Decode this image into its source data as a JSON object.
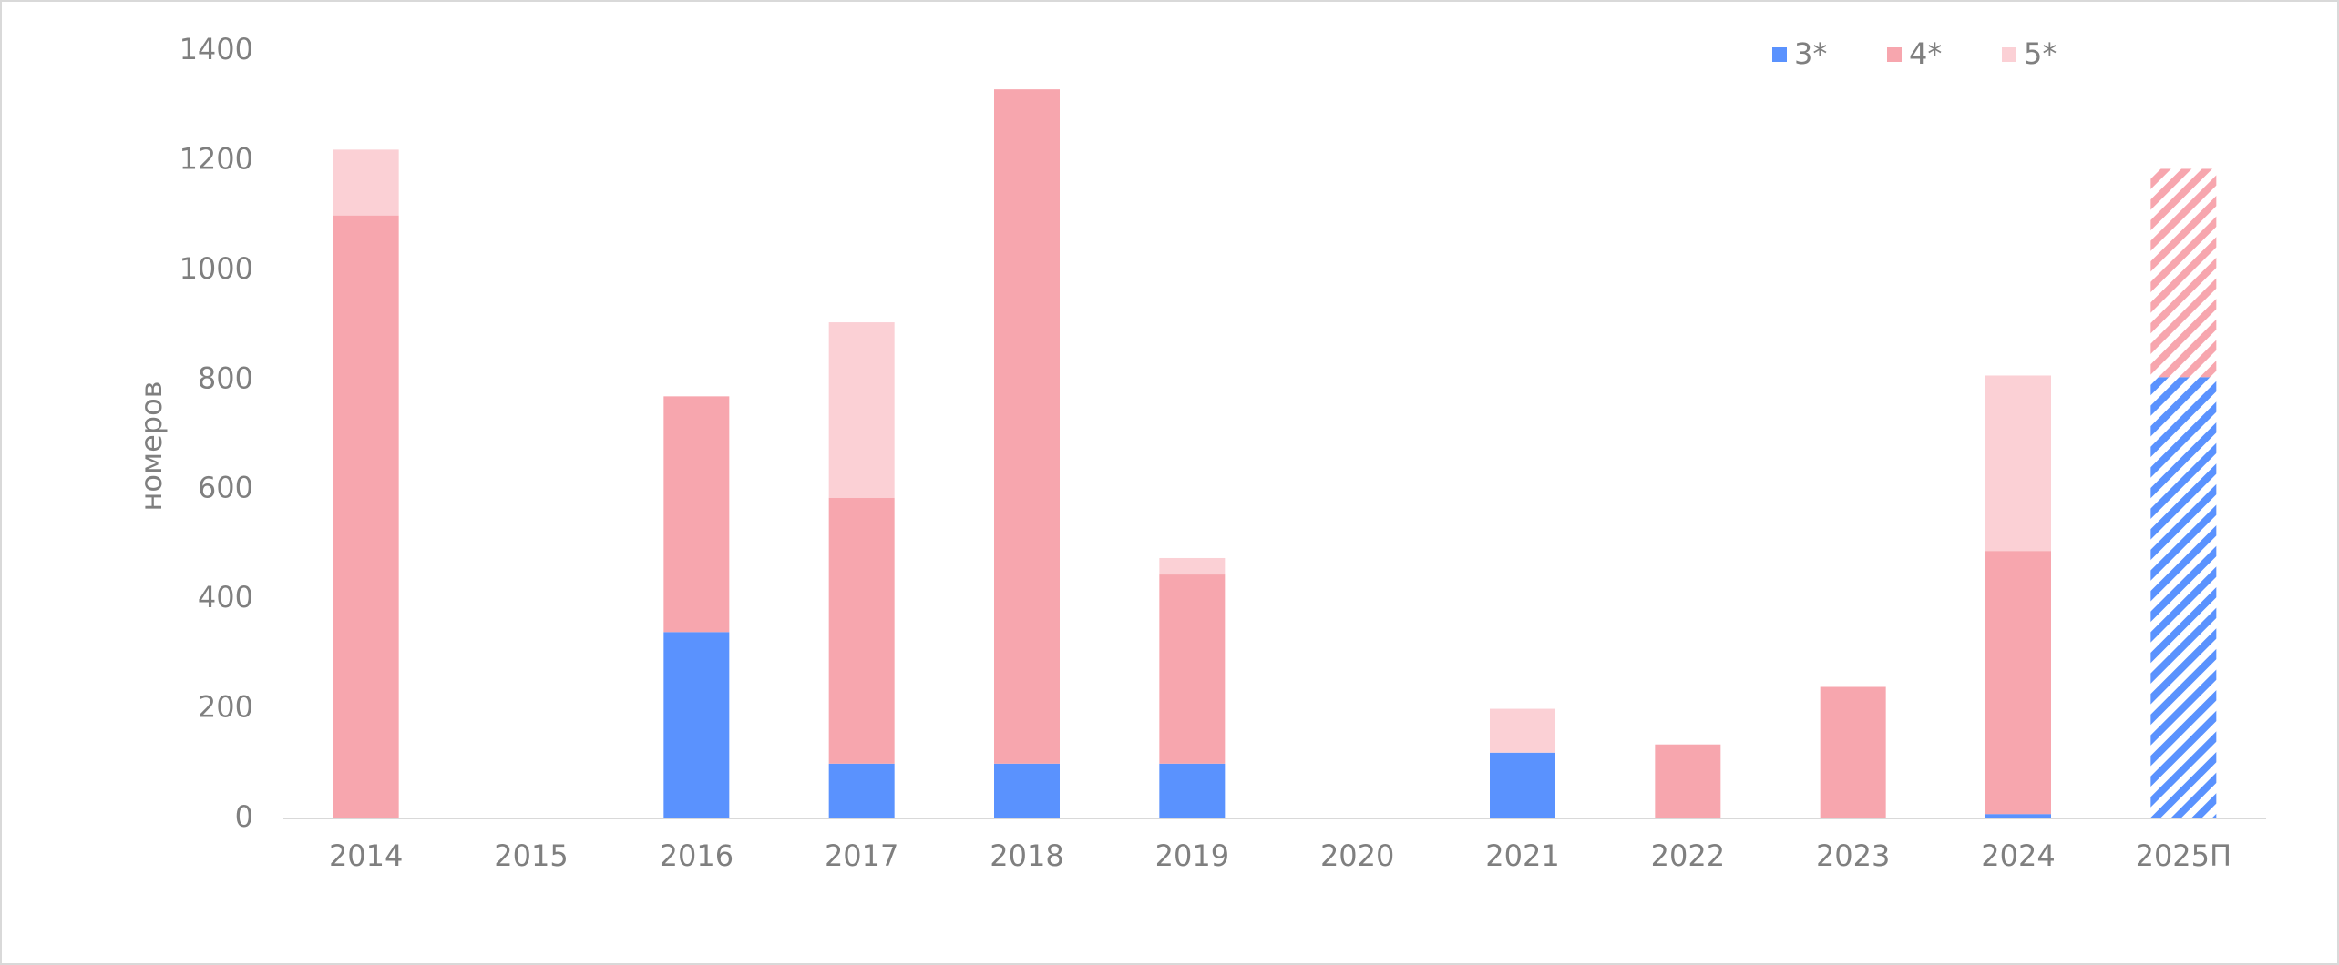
{
  "chart_data": {
    "type": "stacked-bar",
    "y_label": "номеров",
    "categories": [
      "2014",
      "2015",
      "2016",
      "2017",
      "2018",
      "2019",
      "2020",
      "2021",
      "2022",
      "2023",
      "2024",
      "2025П"
    ],
    "series": [
      {
        "name": "3*",
        "color": "#5a92fe",
        "values": [
          0,
          0,
          340,
          100,
          100,
          100,
          0,
          120,
          0,
          0,
          8,
          805
        ]
      },
      {
        "name": "4*",
        "color": "#f7a6ae",
        "values": [
          1100,
          0,
          430,
          485,
          1230,
          345,
          0,
          0,
          135,
          240,
          480,
          380
        ]
      },
      {
        "name": "5*",
        "color": "#fbd0d5",
        "values": [
          120,
          0,
          0,
          320,
          0,
          30,
          0,
          80,
          0,
          0,
          320,
          0
        ]
      }
    ],
    "hatched": [
      false,
      false,
      false,
      false,
      false,
      false,
      false,
      false,
      false,
      false,
      false,
      true
    ],
    "ylim": [
      0,
      1400
    ],
    "yticks": [
      0,
      200,
      400,
      600,
      800,
      1000,
      1200,
      1400
    ],
    "grid": false,
    "legend": "top-right"
  }
}
